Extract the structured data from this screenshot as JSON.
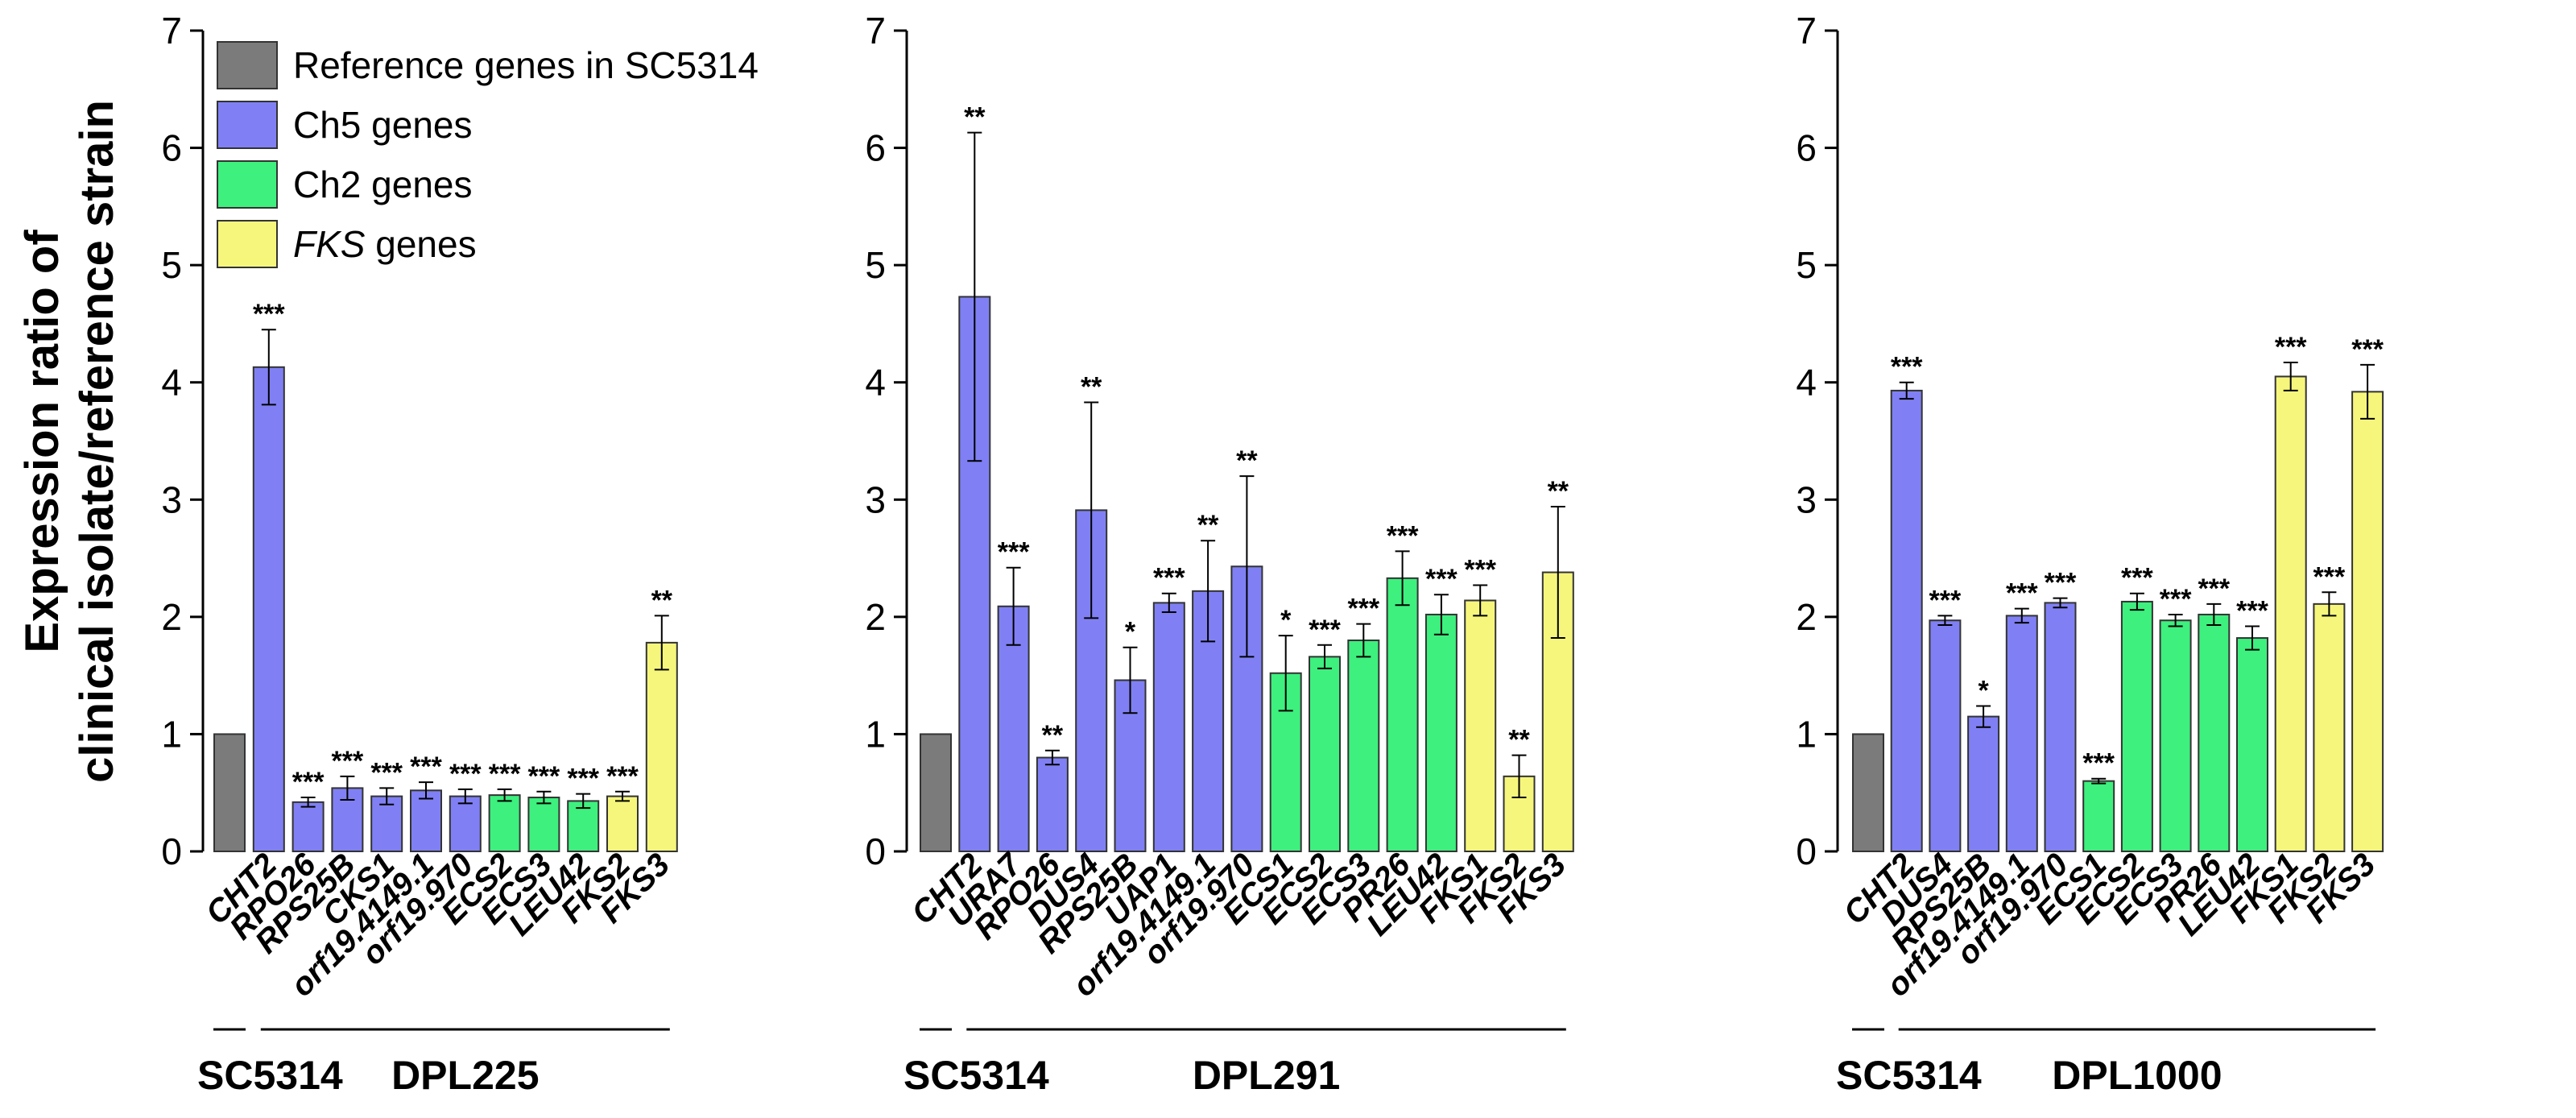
{
  "colors": {
    "reference": "#7b7b7b",
    "ch5": "#8080f4",
    "ch2": "#3ef07e",
    "fks": "#f6f67c"
  },
  "y_axis_label_lines": [
    "Expression ratio of",
    "clinical isolate/reference strain"
  ],
  "legend": [
    {
      "group": "reference",
      "label": "Reference genes in SC5314",
      "italic_prefix": ""
    },
    {
      "group": "ch5",
      "label": "Ch5 genes",
      "italic_prefix": ""
    },
    {
      "group": "ch2",
      "label": "Ch2 genes",
      "italic_prefix": ""
    },
    {
      "group": "fks",
      "label": " genes",
      "italic_prefix": "FKS"
    }
  ],
  "chart_data": [
    {
      "type": "bar",
      "ylim": [
        0,
        7
      ],
      "yticks": [
        0,
        1,
        2,
        3,
        4,
        5,
        6,
        7
      ],
      "reference_label": "SC5314",
      "isolate_label": "DPL225",
      "categories": [
        "",
        "CHT2",
        "RPO26",
        "RPS25B",
        "CKS1",
        "orf19.4149.1",
        "orf19.970",
        "ECS2",
        "ECS3",
        "LEU42",
        "FKS2",
        "FKS3"
      ],
      "groups": [
        "reference",
        "ch5",
        "ch5",
        "ch5",
        "ch5",
        "ch5",
        "ch5",
        "ch2",
        "ch2",
        "ch2",
        "fks",
        "fks"
      ],
      "values": [
        1.0,
        4.13,
        0.42,
        0.54,
        0.47,
        0.52,
        0.47,
        0.48,
        0.46,
        0.43,
        0.47,
        1.78
      ],
      "errors": [
        0,
        0.32,
        0.04,
        0.1,
        0.07,
        0.07,
        0.06,
        0.05,
        0.05,
        0.06,
        0.04,
        0.23
      ],
      "significance": [
        "",
        "***",
        "***",
        "***",
        "***",
        "***",
        "***",
        "***",
        "***",
        "***",
        "***",
        "**"
      ]
    },
    {
      "type": "bar",
      "ylim": [
        0,
        7
      ],
      "yticks": [
        0,
        1,
        2,
        3,
        4,
        5,
        6,
        7
      ],
      "reference_label": "SC5314",
      "isolate_label": "DPL291",
      "categories": [
        "",
        "CHT2",
        "URA7",
        "RPO26",
        "DUS4",
        "RPS25B",
        "UAP1",
        "orf19.4149.1",
        "orf19.970",
        "ECS1",
        "ECS2",
        "ECS3",
        "PR26",
        "LEU42",
        "FKS1",
        "FKS2",
        "FKS3"
      ],
      "groups": [
        "reference",
        "ch5",
        "ch5",
        "ch5",
        "ch5",
        "ch5",
        "ch5",
        "ch5",
        "ch5",
        "ch2",
        "ch2",
        "ch2",
        "ch2",
        "ch2",
        "fks",
        "fks",
        "fks"
      ],
      "values": [
        1.0,
        4.73,
        2.09,
        0.8,
        2.91,
        1.46,
        2.12,
        2.22,
        2.43,
        1.52,
        1.66,
        1.8,
        2.33,
        2.02,
        2.14,
        0.64,
        2.38
      ],
      "errors": [
        0,
        1.4,
        0.33,
        0.06,
        0.92,
        0.28,
        0.08,
        0.43,
        0.77,
        0.32,
        0.1,
        0.14,
        0.23,
        0.17,
        0.13,
        0.18,
        0.56
      ],
      "significance": [
        "",
        "**",
        "***",
        "**",
        "**",
        "*",
        "***",
        "**",
        "**",
        "*",
        "***",
        "***",
        "***",
        "***",
        "***",
        "**",
        "**"
      ]
    },
    {
      "type": "bar",
      "ylim": [
        0,
        7
      ],
      "yticks": [
        0,
        1,
        2,
        3,
        4,
        5,
        6,
        7
      ],
      "reference_label": "SC5314",
      "isolate_label": "DPL1000",
      "categories": [
        "",
        "CHT2",
        "DUS4",
        "RPS25B",
        "orf19.4149.1",
        "orf19.970",
        "ECS1",
        "ECS2",
        "ECS3",
        "PR26",
        "LEU42",
        "FKS1",
        "FKS2",
        "FKS3"
      ],
      "groups": [
        "reference",
        "ch5",
        "ch5",
        "ch5",
        "ch5",
        "ch5",
        "ch2",
        "ch2",
        "ch2",
        "ch2",
        "ch2",
        "fks",
        "fks",
        "fks"
      ],
      "values": [
        1.0,
        3.93,
        1.97,
        1.15,
        2.01,
        2.12,
        0.6,
        2.13,
        1.97,
        2.02,
        1.82,
        4.05,
        2.11,
        3.92
      ],
      "errors": [
        0,
        0.07,
        0.04,
        0.09,
        0.06,
        0.04,
        0.02,
        0.07,
        0.05,
        0.09,
        0.1,
        0.12,
        0.1,
        0.23
      ],
      "significance": [
        "",
        "***",
        "***",
        "*",
        "***",
        "***",
        "***",
        "***",
        "***",
        "***",
        "***",
        "***",
        "***",
        "***"
      ]
    }
  ]
}
